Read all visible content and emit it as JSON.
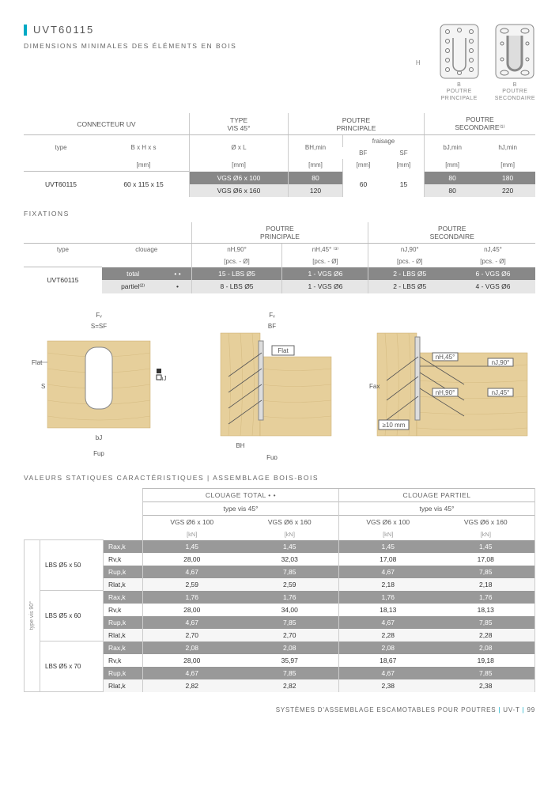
{
  "title": "UVT60115",
  "subtitle": "DIMENSIONS MINIMALES DES ÉLÉMENTS EN BOIS",
  "conn": {
    "h": "H",
    "col1": {
      "b": "B",
      "label": "POUTRE\nPRINCIPALE"
    },
    "col2": {
      "b": "B",
      "label": "POUTRE\nSECONDAIRE"
    }
  },
  "tbl1": {
    "hdr": {
      "c1": "CONNECTEUR UV",
      "c2": "TYPE\nVIS 45°",
      "c3": "POUTRE\nPRINCIPALE",
      "c4": "POUTRE\nSECONDAIRE⁽¹⁾"
    },
    "sub": {
      "type": "type",
      "bhx": "B x H x s",
      "ol": "Ø x L",
      "bhmin": "BH,min",
      "fraisage": "fraisage",
      "bf": "BF",
      "sf": "SF",
      "bjmin": "bJ,min",
      "hjmin": "hJ,min",
      "mm": "[mm]"
    },
    "r1": {
      "type": "UVT60115",
      "bhx": "60 x 115 x 15",
      "ol": "VGS Ø6 x 100",
      "bhmin": "80",
      "bf": "60",
      "sf": "15",
      "bjmin": "80",
      "hjmin": "180"
    },
    "r2": {
      "ol": "VGS Ø6 x 160",
      "bhmin": "120",
      "bjmin": "80",
      "hjmin": "220"
    }
  },
  "fixations_label": "FIXATIONS",
  "tbl2": {
    "hdr": {
      "pp": "POUTRE\nPRINCIPALE",
      "ps": "POUTRE\nSECONDAIRE"
    },
    "sub": {
      "type": "type",
      "clouage": "clouage",
      "nH90": "nH,90°",
      "nH45": "nH,45° ⁽³⁾",
      "nJ90": "nJ,90°",
      "nJ45": "nJ,45°",
      "pcs": "[pcs. - Ø]"
    },
    "r1": {
      "type": "UVT60115",
      "cl": "total",
      "dots": "• •",
      "nH90": "15 - LBS Ø5",
      "nH45": "1 - VGS Ø6",
      "nJ90": "2 - LBS Ø5",
      "nJ45": "6 - VGS Ø6"
    },
    "r2": {
      "cl": "partiel⁽²⁾",
      "dots": "•",
      "nH90": "8 - LBS Ø5",
      "nH45": "1 - VGS Ø6",
      "nJ90": "2 - LBS Ø5",
      "nJ45": "4 - VGS Ø6"
    }
  },
  "diagram_labels": {
    "fv": "Fᵥ",
    "fup": "Fup",
    "flat": "Flat",
    "fax": "Fax",
    "s": "S",
    "bj": "bJ",
    "bh": "BH",
    "bf": "BF",
    "ssf": "S=SF",
    "hj": "hJ",
    "nH45": "nH,45°",
    "nH90": "nH,90°",
    "nJ45": "nJ,45°",
    "nJ90": "nJ,90°",
    "gap": "≥10 mm"
  },
  "sv_label": "VALEURS STATIQUES CARACTÉRISTIQUES | ASSEMBLAGE BOIS-BOIS",
  "sv": {
    "hdr": {
      "ct": "CLOUAGE TOTAL  • •",
      "cp": "CLOUAGE PARTIEL",
      "tv": "type vis 45°",
      "v100": "VGS Ø6 x 100",
      "v160": "VGS Ø6 x 160",
      "kn": "[kN]"
    },
    "side": "type vis 90°",
    "groups": [
      {
        "label": "LBS Ø5 x 50",
        "rows": [
          {
            "k": "Rax,k",
            "a": "1,45",
            "b": "1,45",
            "c": "1,45",
            "d": "1,45"
          },
          {
            "k": "Rv,k",
            "a": "28,00",
            "b": "32,03",
            "c": "17,08",
            "d": "17,08"
          },
          {
            "k": "Rup,k",
            "a": "4,67",
            "b": "7,85",
            "c": "4,67",
            "d": "7,85"
          },
          {
            "k": "Rlat,k",
            "a": "2,59",
            "b": "2,59",
            "c": "2,18",
            "d": "2,18"
          }
        ]
      },
      {
        "label": "LBS Ø5 x 60",
        "rows": [
          {
            "k": "Rax,k",
            "a": "1,76",
            "b": "1,76",
            "c": "1,76",
            "d": "1,76"
          },
          {
            "k": "Rv,k",
            "a": "28,00",
            "b": "34,00",
            "c": "18,13",
            "d": "18,13"
          },
          {
            "k": "Rup,k",
            "a": "4,67",
            "b": "7,85",
            "c": "4,67",
            "d": "7,85"
          },
          {
            "k": "Rlat,k",
            "a": "2,70",
            "b": "2,70",
            "c": "2,28",
            "d": "2,28"
          }
        ]
      },
      {
        "label": "LBS Ø5 x 70",
        "rows": [
          {
            "k": "Rax,k",
            "a": "2,08",
            "b": "2,08",
            "c": "2,08",
            "d": "2,08"
          },
          {
            "k": "Rv,k",
            "a": "28,00",
            "b": "35,97",
            "c": "18,67",
            "d": "19,18"
          },
          {
            "k": "Rup,k",
            "a": "4,67",
            "b": "7,85",
            "c": "4,67",
            "d": "7,85"
          },
          {
            "k": "Rlat,k",
            "a": "2,82",
            "b": "2,82",
            "c": "2,38",
            "d": "2,38"
          }
        ]
      }
    ]
  },
  "footer": {
    "text": "SYSTÈMES D'ASSEMBLAGE ESCAMOTABLES POUR POUTRES",
    "sep": " | ",
    "cat": "UV-T",
    "page": "99"
  }
}
